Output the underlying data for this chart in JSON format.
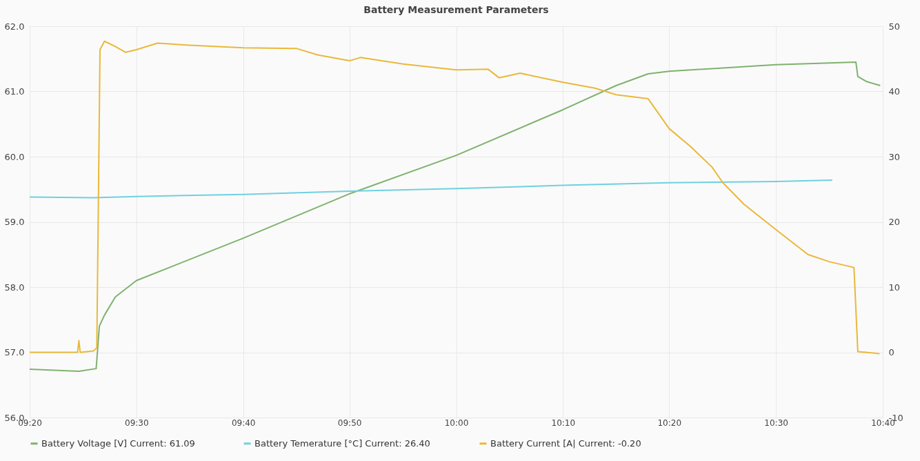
{
  "chart_data": {
    "type": "line",
    "title": "Battery Measurement Parameters",
    "xlim": [
      9.333,
      10.667
    ],
    "xticks": [
      {
        "value": 9.333,
        "label": "09:20"
      },
      {
        "value": 9.5,
        "label": "09:30"
      },
      {
        "value": 9.667,
        "label": "09:40"
      },
      {
        "value": 9.833,
        "label": "09:50"
      },
      {
        "value": 10,
        "label": "10:00"
      },
      {
        "value": 10.167,
        "label": "10:10"
      },
      {
        "value": 10.333,
        "label": "10:20"
      },
      {
        "value": 10.5,
        "label": "10:30"
      },
      {
        "value": 10.667,
        "label": "10:40"
      }
    ],
    "ylim": [
      56,
      62
    ],
    "yticks": [
      {
        "value": 56,
        "label": "56.0"
      },
      {
        "value": 57,
        "label": "57.0"
      },
      {
        "value": 58,
        "label": "58.0"
      },
      {
        "value": 59,
        "label": "59.0"
      },
      {
        "value": 60,
        "label": "60.0"
      },
      {
        "value": 61,
        "label": "61.0"
      },
      {
        "value": 62,
        "label": "62.0"
      }
    ],
    "y2lim": [
      -10,
      50
    ],
    "y2ticks": [
      -10,
      0,
      10,
      20,
      30,
      40,
      50
    ],
    "grid": true,
    "legend": "bottom",
    "marker": "none",
    "line_style": "solid",
    "series": [
      {
        "name": "Battery Voltage [V]  Current: 61.09",
        "color": "#7eb26d",
        "x": [
          9.333,
          9.41,
          9.437,
          9.442,
          9.45,
          9.467,
          9.5,
          9.667,
          9.833,
          10.0,
          10.167,
          10.25,
          10.3,
          10.333,
          10.5,
          10.625,
          10.628,
          10.642,
          10.663
        ],
        "values": [
          56.74,
          56.71,
          56.75,
          57.4,
          57.57,
          57.85,
          58.1,
          58.75,
          59.43,
          60.02,
          60.72,
          61.09,
          61.27,
          61.31,
          61.41,
          61.45,
          61.23,
          61.15,
          61.09
        ]
      },
      {
        "name": "Battery Temerature [°C]  Current: 26.40",
        "color": "#6ed0e0",
        "axis": "y2",
        "x": [
          9.333,
          9.433,
          9.5,
          9.667,
          9.833,
          10.0,
          10.167,
          10.333,
          10.5,
          10.588
        ],
        "values": [
          23.8,
          23.7,
          23.9,
          24.2,
          24.7,
          25.1,
          25.6,
          26.0,
          26.2,
          26.4
        ]
      },
      {
        "name": "Battery Current [A|  Current: -0.20",
        "color": "#eab839",
        "axis": "y2",
        "x": [
          9.333,
          9.408,
          9.41,
          9.412,
          9.433,
          9.438,
          9.443,
          9.45,
          9.467,
          9.483,
          9.5,
          9.533,
          9.583,
          9.667,
          9.75,
          9.783,
          9.833,
          9.85,
          9.917,
          10.0,
          10.05,
          10.067,
          10.1,
          10.167,
          10.217,
          10.25,
          10.3,
          10.333,
          10.367,
          10.4,
          10.417,
          10.45,
          10.5,
          10.55,
          10.583,
          10.622,
          10.628,
          10.662
        ],
        "values": [
          0,
          0,
          1.8,
          0,
          0.2,
          0.7,
          46.4,
          47.7,
          46.9,
          46.0,
          46.4,
          47.4,
          47.1,
          46.7,
          46.6,
          45.6,
          44.7,
          45.2,
          44.2,
          43.3,
          43.4,
          42.1,
          42.8,
          41.4,
          40.5,
          39.5,
          38.9,
          34.3,
          31.5,
          28.4,
          26.0,
          22.7,
          18.8,
          15.0,
          13.9,
          13.0,
          0.1,
          -0.2
        ]
      }
    ]
  }
}
